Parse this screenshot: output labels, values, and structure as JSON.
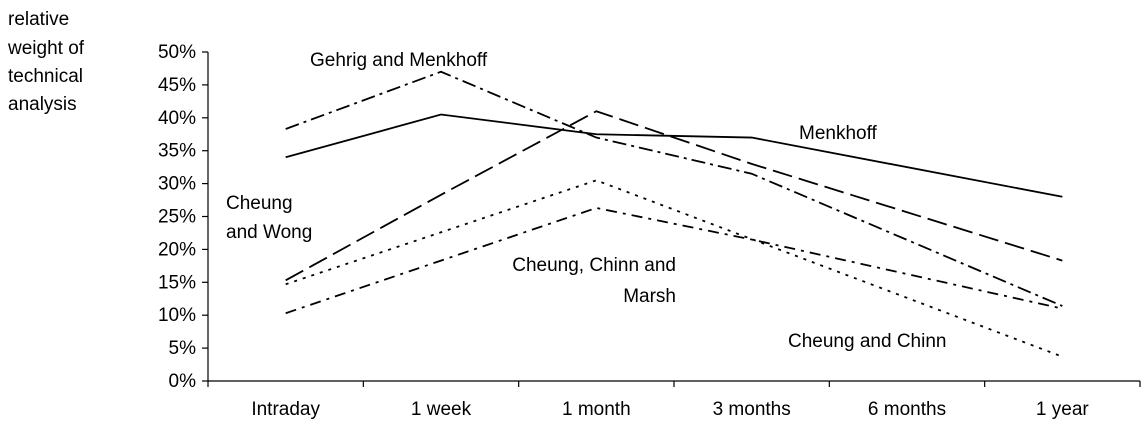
{
  "chart_data": {
    "type": "line",
    "title": "",
    "ylabel_lines": [
      "relative",
      "weight of",
      "technical",
      "analysis"
    ],
    "xlabel": "",
    "categories": [
      "Intraday",
      "1 week",
      "1 month",
      "3 months",
      "6 months",
      "1 year"
    ],
    "ylim": [
      0,
      50
    ],
    "yticks": [
      "0%",
      "5%",
      "10%",
      "15%",
      "20%",
      "25%",
      "30%",
      "35%",
      "40%",
      "45%",
      "50%"
    ],
    "grid": false,
    "legend": "none",
    "series": [
      {
        "name": "Menkhoff",
        "dash": "solid",
        "values": [
          34,
          40.5,
          37.5,
          37,
          null,
          28
        ]
      },
      {
        "name": "Gehrig and Menkhoff",
        "dash": "dashdot",
        "values": [
          38.3,
          47,
          37,
          31.5,
          null,
          11.4
        ]
      },
      {
        "name": "Cheung and Wong",
        "dash": "longdash",
        "values": [
          15.3,
          28.3,
          41,
          33,
          null,
          18.3
        ]
      },
      {
        "name": "Cheung, Chinn and Marsh",
        "dash": "dashdot2",
        "values": [
          10.3,
          18.3,
          26.3,
          21.5,
          null,
          11
        ]
      },
      {
        "name": "Cheung and Chinn",
        "dash": "dotted",
        "values": [
          14.7,
          null,
          30.5,
          null,
          null,
          3.7
        ]
      }
    ],
    "annotations": {
      "gehrig": "Gehrig and Menkhoff",
      "menkhoff": "Menkhoff",
      "wong_line1": "Cheung",
      "wong_line2": "and Wong",
      "ccm_line1": "Cheung, Chinn and",
      "ccm_line2": "Marsh",
      "chinn": "Cheung and Chinn"
    }
  }
}
